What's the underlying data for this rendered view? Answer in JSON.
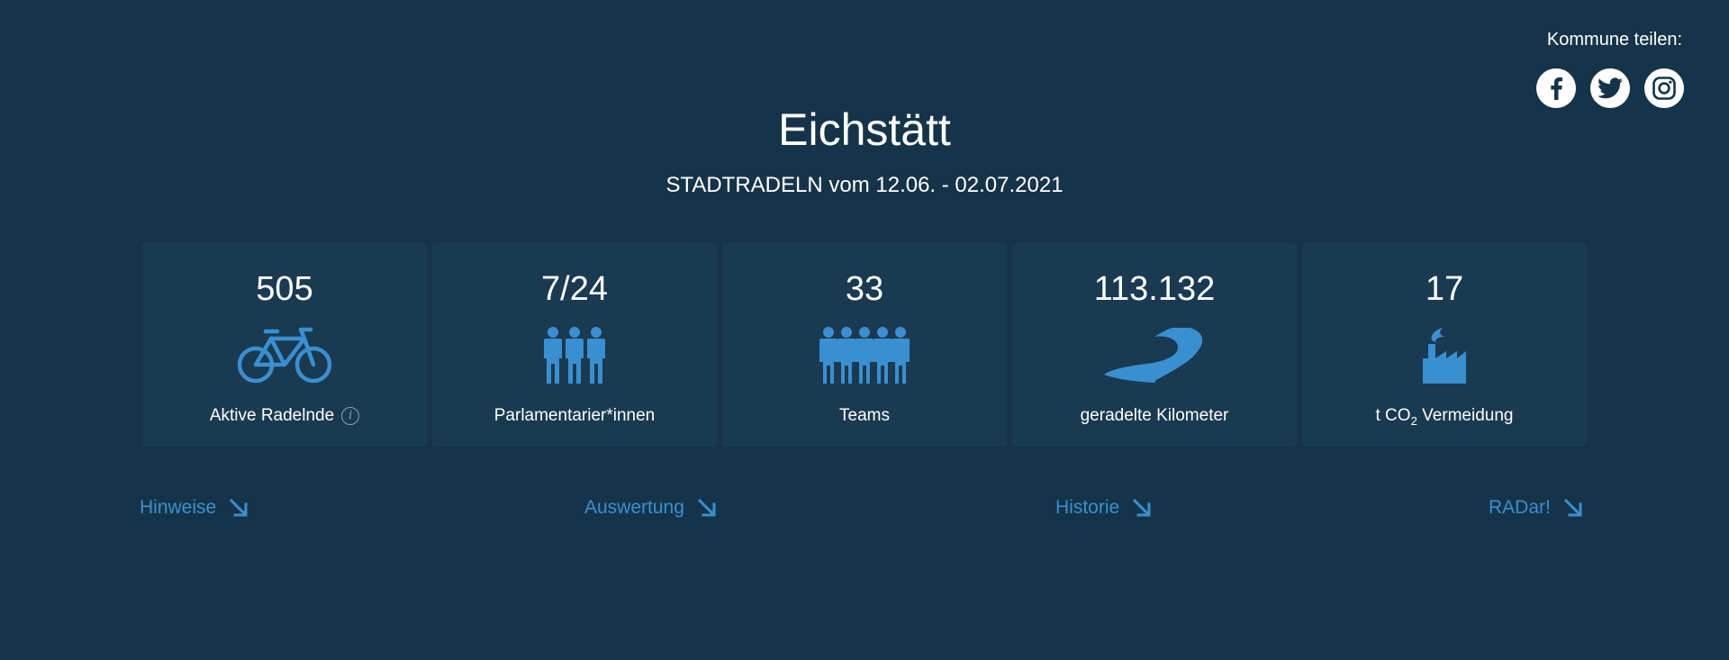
{
  "share": {
    "label": "Kommune teilen:",
    "icons": [
      "facebook-icon",
      "twitter-icon",
      "instagram-icon"
    ]
  },
  "header": {
    "title": "Eichstätt",
    "subtitle": "STADTRADELN vom 12.06. - 02.07.2021"
  },
  "stats": [
    {
      "value": "505",
      "label": "Aktive Radelnde",
      "icon": "bicycle-icon"
    },
    {
      "value": "7/24",
      "label": "Parlamentarier*innen",
      "icon": "people-three-icon"
    },
    {
      "value": "33",
      "label": "Teams",
      "icon": "team-group-icon"
    },
    {
      "value": "113.132",
      "label": "geradelte Kilometer",
      "icon": "road-icon"
    },
    {
      "value": "17",
      "label_prefix": "t CO",
      "label_sub": "2",
      "label_suffix": " Vermeidung",
      "icon": "factory-icon"
    }
  ],
  "links": [
    {
      "label": "Hinweise"
    },
    {
      "label": "Auswertung"
    },
    {
      "label": "Historie"
    },
    {
      "label": "RADar!"
    }
  ],
  "colors": {
    "background": "#163449",
    "card": "#1a3a51",
    "accent": "#3a8fd1",
    "text": "#ffffff"
  }
}
